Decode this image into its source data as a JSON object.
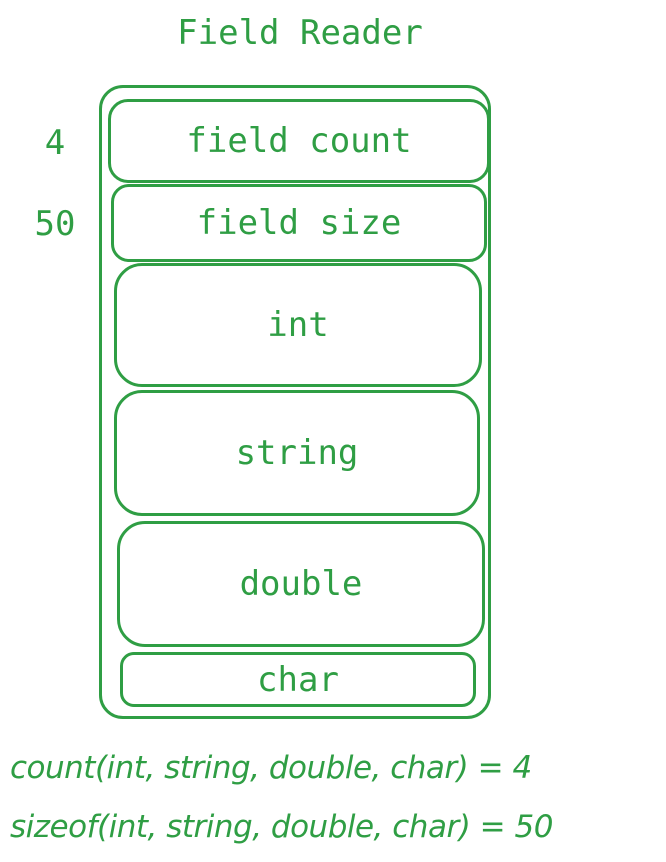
{
  "diagram": {
    "title": "Field Reader",
    "side_labels": {
      "count_value": "4",
      "size_value": "50"
    },
    "fields": [
      "field count",
      "field size",
      "int",
      "string",
      "double",
      "char"
    ],
    "formulas": {
      "count": "count(int, string, double, char) = 4",
      "sizeof": "sizeof(int, string, double, char) = 50"
    },
    "colors": {
      "stroke": "#2f9e44",
      "background": "#ffffff"
    }
  }
}
